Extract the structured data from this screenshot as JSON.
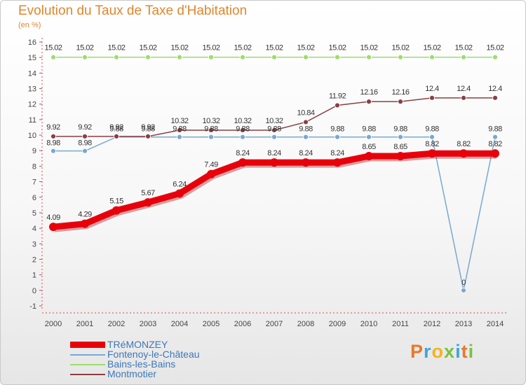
{
  "header": {
    "title": "Evolution du Taux de Taxe d'Habitation",
    "subtitle": "(en %)"
  },
  "logo": {
    "letters": [
      "P",
      "r",
      "o",
      "x",
      "i",
      "t",
      "i"
    ],
    "colors": [
      "#e8792a",
      "#3aa6dd",
      "#f3b41d",
      "#7ac143",
      "#3aa6dd",
      "#e8792a",
      "#7ac143"
    ]
  },
  "chart_data": {
    "type": "line",
    "title": "Evolution du Taux de Taxe d'Habitation",
    "ylabel": "(en %)",
    "xlabel": "",
    "x": [
      "2000",
      "2001",
      "2002",
      "2003",
      "2004",
      "2005",
      "2006",
      "2007",
      "2008",
      "2009",
      "2010",
      "2011",
      "2012",
      "2013",
      "2014"
    ],
    "ylim": [
      -1,
      16
    ],
    "yticks": [
      "-1",
      "0",
      "1",
      "2",
      "3",
      "4",
      "5",
      "6",
      "7",
      "8",
      "9",
      "10",
      "11",
      "12",
      "13",
      "14",
      "15",
      "16"
    ],
    "grid": false,
    "legend_position": "bottom-left",
    "series": [
      {
        "name": "TRéMONZEY",
        "color": "#e8000b",
        "values": [
          4.09,
          4.29,
          5.15,
          5.67,
          6.24,
          7.49,
          8.24,
          8.24,
          8.24,
          8.24,
          8.65,
          8.65,
          8.82,
          8.82,
          8.82
        ],
        "labels": [
          "4.09",
          "4.29",
          "5.15",
          "5.67",
          "6.24",
          "7.49",
          "8.24",
          "8.24",
          "8.24",
          "8.24",
          "8.65",
          "8.65",
          "8.82",
          "8.82",
          "8.82"
        ],
        "emphasis": true
      },
      {
        "name": "Fontenoy-le-Château",
        "color": "#77a9d2",
        "values": [
          8.98,
          8.98,
          9.88,
          9.88,
          9.88,
          9.88,
          9.88,
          9.88,
          9.88,
          9.88,
          9.88,
          9.88,
          9.88,
          0,
          9.88
        ],
        "labels": [
          "8.98",
          "8.98",
          "9.88",
          "9.88",
          "9.88",
          "9.88",
          "9.88",
          "9.88",
          "9.88",
          "9.88",
          "9.88",
          "9.88",
          "9.88",
          "0",
          "9.88"
        ]
      },
      {
        "name": "Bains-les-Bains",
        "color": "#9fdc6e",
        "values": [
          15.02,
          15.02,
          15.02,
          15.02,
          15.02,
          15.02,
          15.02,
          15.02,
          15.02,
          15.02,
          15.02,
          15.02,
          15.02,
          15.02,
          15.02
        ],
        "labels": [
          "15.02",
          "15.02",
          "15.02",
          "15.02",
          "15.02",
          "15.02",
          "15.02",
          "15.02",
          "15.02",
          "15.02",
          "15.02",
          "15.02",
          "15.02",
          "15.02",
          "15.02"
        ]
      },
      {
        "name": "Montmotier",
        "color": "#8a3f43",
        "values": [
          9.92,
          9.92,
          9.92,
          9.92,
          10.32,
          10.32,
          10.32,
          10.32,
          10.84,
          11.92,
          12.16,
          12.16,
          12.4,
          12.4,
          12.4
        ],
        "labels": [
          "9.92",
          "9.92",
          "9.92",
          "9.92",
          "10.32",
          "10.32",
          "10.32",
          "10.32",
          "10.84",
          "11.92",
          "12.16",
          "12.16",
          "12.4",
          "12.4",
          "12.4"
        ]
      }
    ]
  }
}
